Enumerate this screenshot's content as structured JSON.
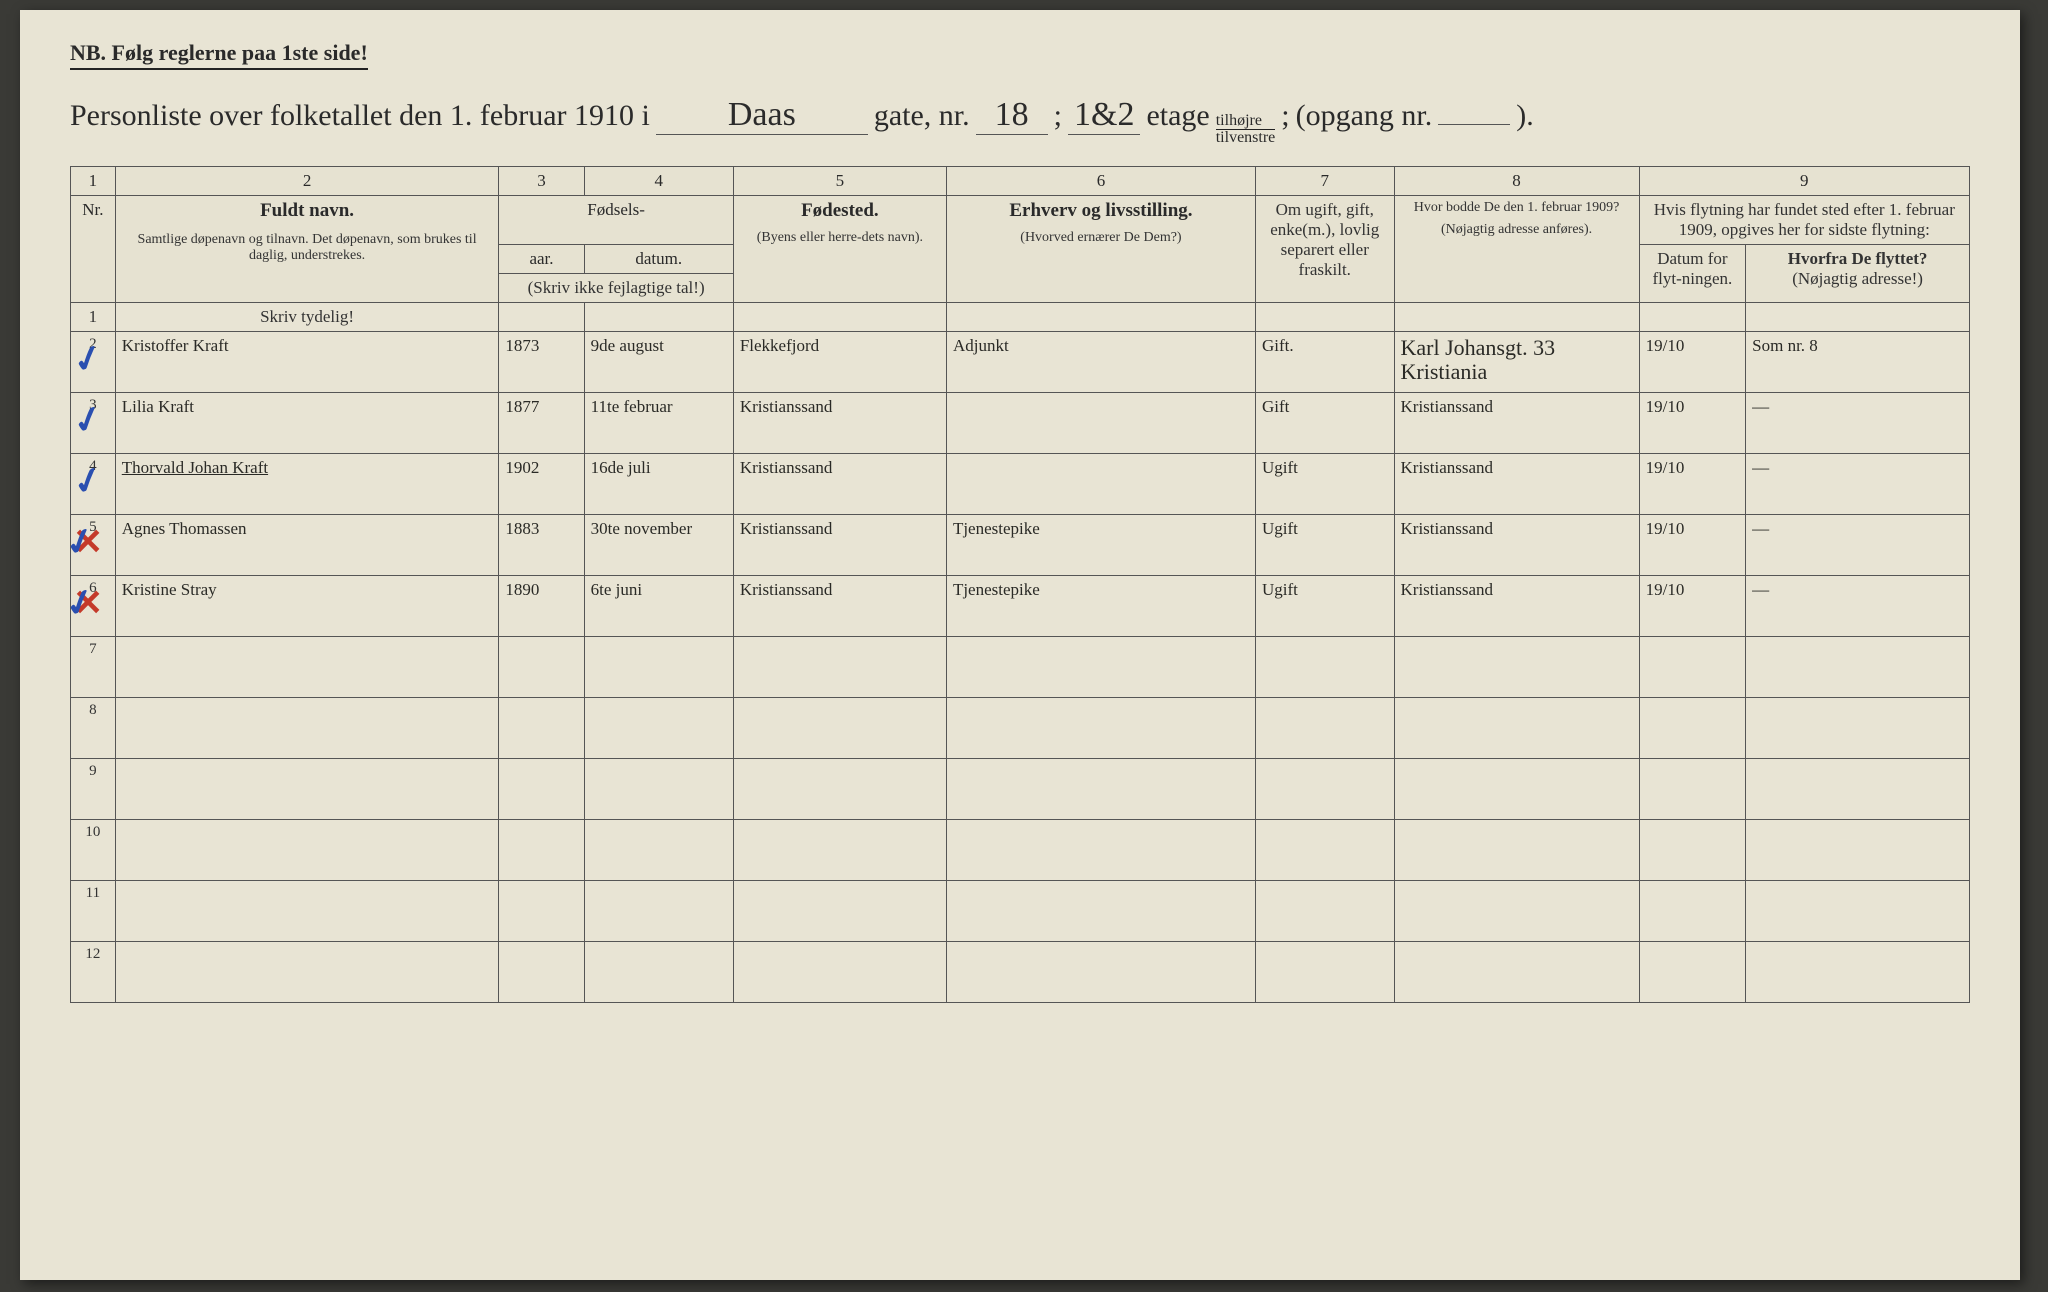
{
  "header": {
    "nb": "NB.   Følg reglerne paa 1ste side!",
    "title_lead": "Personliste over folketallet den 1. februar 1910 i",
    "street_handwritten": "Daas",
    "gate_label": "gate, nr.",
    "gate_nr": "18",
    "semicolon1": ";",
    "etage_nr": "1&2",
    "etage_label": "etage",
    "frac_top": "tilhøjre",
    "frac_bot": "tilvenstre",
    "semicolon2": ";",
    "opgang_label": "(opgang nr.",
    "opgang_nr": "",
    "close": ")."
  },
  "colnums": [
    "1",
    "2",
    "3",
    "4",
    "5",
    "6",
    "7",
    "8",
    "9"
  ],
  "headers": {
    "nr": "Nr.",
    "fuldt_navn": "Fuldt navn.",
    "fuldt_navn_sub": "Samtlige døpenavn og tilnavn. Det døpenavn, som brukes til daglig, understrekes.",
    "fodsels": "Fødsels-",
    "aar": "aar.",
    "datum": "datum.",
    "aar_sub": "(Skriv ikke fejlagtige tal!)",
    "fodested": "Fødested.",
    "fodested_sub": "(Byens eller herre-dets navn).",
    "erhverv": "Erhverv og livsstilling.",
    "erhverv_sub": "(Hvorved ernærer De Dem?)",
    "ugift": "Om ugift, gift, enke(m.), lovlig separert eller fraskilt.",
    "bodde": "Hvor bodde De den 1. februar 1909?",
    "bodde_sub": "(Nøjagtig adresse anføres).",
    "flytning": "Hvis flytning har fundet sted efter 1. februar 1909, opgives her for sidste flytning:",
    "datum_flyt": "Datum for flyt-ningen.",
    "hvorfra": "Hvorfra De flyttet?",
    "hvorfra_sub": "(Nøjagtig adresse!)"
  },
  "instruct": "Skriv tydelig!",
  "rows": [
    {
      "n": "1",
      "mark": "",
      "name": "",
      "aar": "",
      "datum": "",
      "fodested": "",
      "erhverv": "",
      "status": "",
      "bodde": "",
      "flyt_dat": "",
      "hvorfra": ""
    },
    {
      "n": "2",
      "mark": "blue",
      "name": "Kristoffer Kraft",
      "aar": "1873",
      "datum": "9de august",
      "fodested": "Flekkefjord",
      "erhverv": "Adjunkt",
      "status": "Gift.",
      "bodde": "Karl Johansgt. 33 Kristiania",
      "flyt_dat": "19/10",
      "hvorfra": "Som nr. 8"
    },
    {
      "n": "3",
      "mark": "blue",
      "name": "Lilia Kraft",
      "aar": "1877",
      "datum": "11te februar",
      "fodested": "Kristianssand",
      "erhverv": "",
      "status": "Gift",
      "bodde": "Kristianssand",
      "flyt_dat": "19/10",
      "hvorfra": "—"
    },
    {
      "n": "4",
      "mark": "blue",
      "name": "Thorvald Johan Kraft",
      "underlined": true,
      "aar": "1902",
      "datum": "16de juli",
      "fodested": "Kristianssand",
      "erhverv": "",
      "status": "Ugift",
      "bodde": "Kristianssand",
      "flyt_dat": "19/10",
      "hvorfra": "—"
    },
    {
      "n": "5",
      "mark": "red",
      "name": "Agnes Thomassen",
      "aar": "1883",
      "datum": "30te november",
      "fodested": "Kristianssand",
      "erhverv": "Tjenestepike",
      "status": "Ugift",
      "bodde": "Kristianssand",
      "flyt_dat": "19/10",
      "hvorfra": "—"
    },
    {
      "n": "6",
      "mark": "red",
      "name": "Kristine Stray",
      "aar": "1890",
      "datum": "6te juni",
      "fodested": "Kristianssand",
      "erhverv": "Tjenestepike",
      "status": "Ugift",
      "bodde": "Kristianssand",
      "flyt_dat": "19/10",
      "hvorfra": "—"
    },
    {
      "n": "7",
      "mark": "",
      "name": "",
      "aar": "",
      "datum": "",
      "fodested": "",
      "erhverv": "",
      "status": "",
      "bodde": "",
      "flyt_dat": "",
      "hvorfra": ""
    },
    {
      "n": "8",
      "mark": "",
      "name": "",
      "aar": "",
      "datum": "",
      "fodested": "",
      "erhverv": "",
      "status": "",
      "bodde": "",
      "flyt_dat": "",
      "hvorfra": ""
    },
    {
      "n": "9",
      "mark": "",
      "name": "",
      "aar": "",
      "datum": "",
      "fodested": "",
      "erhverv": "",
      "status": "",
      "bodde": "",
      "flyt_dat": "",
      "hvorfra": ""
    },
    {
      "n": "10",
      "mark": "",
      "name": "",
      "aar": "",
      "datum": "",
      "fodested": "",
      "erhverv": "",
      "status": "",
      "bodde": "",
      "flyt_dat": "",
      "hvorfra": ""
    },
    {
      "n": "11",
      "mark": "",
      "name": "",
      "aar": "",
      "datum": "",
      "fodested": "",
      "erhverv": "",
      "status": "",
      "bodde": "",
      "flyt_dat": "",
      "hvorfra": ""
    },
    {
      "n": "12",
      "mark": "",
      "name": "",
      "aar": "",
      "datum": "",
      "fodested": "",
      "erhverv": "",
      "status": "",
      "bodde": "",
      "flyt_dat": "",
      "hvorfra": ""
    }
  ]
}
